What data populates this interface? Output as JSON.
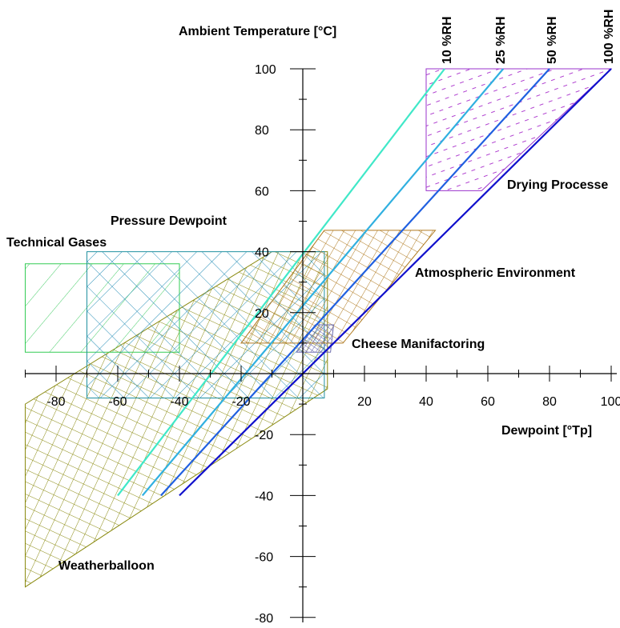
{
  "chart_data": {
    "type": "area",
    "ylabel": "Ambient Temperature [°C]",
    "xlabel": "Dewpoint [°Tp]",
    "x_ticks": [
      "-80",
      "-60",
      "-40",
      "-20",
      "20",
      "40",
      "60",
      "80",
      "100"
    ],
    "y_ticks": [
      "100",
      "80",
      "60",
      "40",
      "20",
      "-20",
      "-40",
      "-60",
      "-80"
    ],
    "xlim": [
      -90,
      100
    ],
    "ylim": [
      -80,
      100
    ],
    "rh_lines": [
      {
        "name": "10 %RH",
        "color": "#40e8c8",
        "from": [
          -60,
          -40
        ],
        "to": [
          46,
          100
        ]
      },
      {
        "name": "25 %RH",
        "color": "#30b0e0",
        "from": [
          -52,
          -40
        ],
        "to": [
          65,
          100
        ]
      },
      {
        "name": "50 %RH",
        "color": "#2060e0",
        "from": [
          -46,
          -40
        ],
        "to": [
          80,
          100
        ]
      },
      {
        "name": "100 %RH",
        "color": "#1010cc",
        "from": [
          -40,
          -40
        ],
        "to": [
          100,
          100
        ]
      }
    ],
    "regions": [
      {
        "name": "Drying Processe",
        "color": "#9933cc",
        "polygon": [
          [
            40,
            60
          ],
          [
            58,
            60
          ],
          [
            100,
            100
          ],
          [
            40,
            100
          ]
        ]
      },
      {
        "name": "Pressure Dewpoint",
        "color": "#2090a0",
        "polygon": [
          [
            -70,
            -8
          ],
          [
            7,
            -8
          ],
          [
            7,
            40
          ],
          [
            -70,
            40
          ]
        ]
      },
      {
        "name": "Technical Gases",
        "color": "#33cc55",
        "polygon": [
          [
            -90,
            7
          ],
          [
            -40,
            7
          ],
          [
            -40,
            36
          ],
          [
            -90,
            36
          ]
        ]
      },
      {
        "name": "Atmospheric Environment",
        "color": "#b07a20",
        "polygon": [
          [
            -20,
            10
          ],
          [
            13,
            10
          ],
          [
            43,
            47
          ],
          [
            7,
            47
          ]
        ]
      },
      {
        "name": "Cheese Manifactoring",
        "color": "#7070b0",
        "polygon": [
          [
            -2,
            7
          ],
          [
            9,
            7
          ],
          [
            10,
            16
          ],
          [
            4,
            16
          ]
        ]
      },
      {
        "name": "Weatherballoon",
        "color": "#8a8a10",
        "polygon": [
          [
            -90,
            -70
          ],
          [
            -90,
            -10
          ],
          [
            -10,
            40
          ],
          [
            8,
            40
          ],
          [
            8,
            -5
          ]
        ]
      }
    ]
  },
  "labels": {
    "y_axis_title": "Ambient Temperature [°C]",
    "x_axis_title": "Dewpoint [°Tp]",
    "rh_10": "10 %RH",
    "rh_25": "25 %RH",
    "rh_50": "50 %RH",
    "rh_100": "100 %RH",
    "drying": "Drying Processe",
    "pressure": "Pressure Dewpoint",
    "technical": "Technical Gases",
    "atmospheric": "Atmospheric Environment",
    "cheese": "Cheese Manifactoring",
    "weatherballoon": "Weatherballoon"
  }
}
